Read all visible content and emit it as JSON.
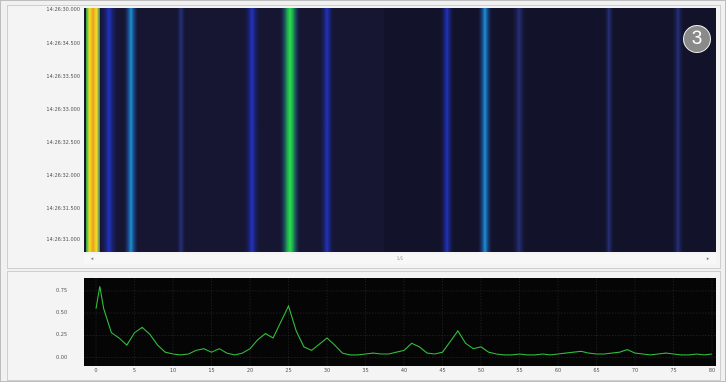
{
  "waterfall": {
    "time_labels": [
      "14:26:30.000",
      "14:26:34.500",
      "14:26:33.500",
      "14:26:33.000",
      "14:26:32.500",
      "14:26:32.000",
      "14:26:31.500",
      "14:26:31.000"
    ],
    "scroll_label": "1/1"
  },
  "badge": {
    "number": "3"
  },
  "colors": {
    "peak_strong": "#21d94a",
    "peak_mid": "#1c8fd6",
    "peak_low": "#2336c4",
    "edge_yellow": "#f4e01f",
    "background": "#0f0f1f",
    "trace": "#2fbf3a"
  },
  "chart_data": {
    "type": "line",
    "title": "",
    "xlabel": "",
    "ylabel": "",
    "x_ticks": [
      "0",
      "5",
      "10",
      "15",
      "20",
      "25",
      "30",
      "35",
      "40",
      "45",
      "50",
      "55",
      "60",
      "65",
      "70",
      "75",
      "80"
    ],
    "y_ticks": [
      "0.75",
      "0.50",
      "0.25",
      "0.00"
    ],
    "xlim": [
      0,
      80
    ],
    "ylim": [
      -0.05,
      0.85
    ],
    "grid": true,
    "series": [
      {
        "x": [
          0,
          0.5,
          1,
          2,
          3,
          4,
          5,
          6,
          7,
          8,
          9,
          10,
          11,
          12,
          13,
          14,
          15,
          16,
          17,
          18,
          19,
          20,
          21,
          22,
          23,
          24,
          25,
          26,
          27,
          28,
          29,
          30,
          31,
          32,
          33,
          34,
          35,
          36,
          37,
          38,
          39,
          40,
          41,
          42,
          43,
          44,
          45,
          46,
          47,
          48,
          49,
          50,
          51,
          52,
          53,
          54,
          55,
          56,
          57,
          58,
          59,
          60,
          61,
          62,
          63,
          64,
          65,
          66,
          67,
          68,
          69,
          70,
          71,
          72,
          73,
          74,
          75,
          76,
          77,
          78,
          79,
          80
        ],
        "values": [
          0.55,
          0.8,
          0.55,
          0.28,
          0.22,
          0.14,
          0.28,
          0.34,
          0.26,
          0.14,
          0.06,
          0.04,
          0.03,
          0.04,
          0.08,
          0.1,
          0.06,
          0.1,
          0.05,
          0.03,
          0.05,
          0.1,
          0.2,
          0.27,
          0.22,
          0.4,
          0.58,
          0.3,
          0.12,
          0.08,
          0.15,
          0.22,
          0.14,
          0.05,
          0.03,
          0.03,
          0.04,
          0.05,
          0.04,
          0.04,
          0.06,
          0.08,
          0.16,
          0.12,
          0.05,
          0.04,
          0.06,
          0.18,
          0.3,
          0.16,
          0.1,
          0.12,
          0.06,
          0.04,
          0.03,
          0.03,
          0.04,
          0.03,
          0.03,
          0.04,
          0.03,
          0.04,
          0.05,
          0.06,
          0.07,
          0.05,
          0.04,
          0.04,
          0.05,
          0.06,
          0.09,
          0.05,
          0.04,
          0.03,
          0.04,
          0.05,
          0.04,
          0.03,
          0.03,
          0.04,
          0.03,
          0.04
        ]
      }
    ]
  }
}
